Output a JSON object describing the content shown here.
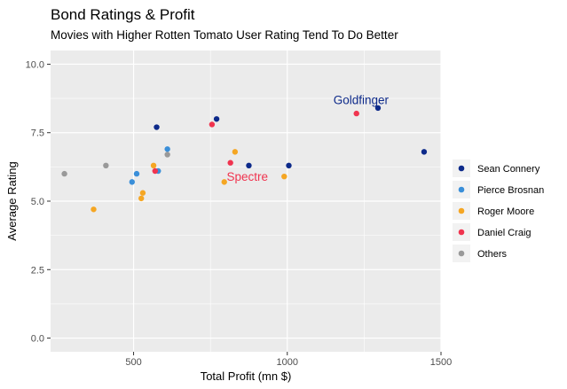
{
  "chart_data": {
    "type": "scatter",
    "title": "Bond Ratings & Profit",
    "subtitle": "Movies with Higher Rotten Tomato User Rating Tend To Do Better",
    "xlabel": "Total Profit (mn $)",
    "ylabel": "Average Rating",
    "xlim": [
      230,
      1500
    ],
    "ylim": [
      -0.5,
      10.5
    ],
    "x_ticks": [
      500,
      1000,
      1500
    ],
    "y_ticks": [
      0,
      2.5,
      5,
      7.5,
      10
    ],
    "y_tick_labels": [
      "0.0",
      "2.5",
      "5.0",
      "7.5",
      "10.0"
    ],
    "grid": true,
    "legend_position": "right",
    "series": [
      {
        "name": "Sean Connery",
        "color": "#0d2a8a",
        "points": [
          [
            575,
            7.7
          ],
          [
            770,
            8.0
          ],
          [
            875,
            6.3
          ],
          [
            1005,
            6.3
          ],
          [
            1295,
            8.4
          ],
          [
            1445,
            6.8
          ]
        ]
      },
      {
        "name": "Pierce Brosnan",
        "color": "#3a8fd9",
        "points": [
          [
            495,
            5.7
          ],
          [
            510,
            6.0
          ],
          [
            580,
            6.1
          ],
          [
            610,
            6.9
          ]
        ]
      },
      {
        "name": "Roger Moore",
        "color": "#f5a623",
        "points": [
          [
            370,
            4.7
          ],
          [
            525,
            5.1
          ],
          [
            530,
            5.3
          ],
          [
            565,
            6.3
          ],
          [
            795,
            5.7
          ],
          [
            830,
            6.8
          ],
          [
            990,
            5.9
          ]
        ]
      },
      {
        "name": "Daniel Craig",
        "color": "#f0344f",
        "points": [
          [
            570,
            6.1
          ],
          [
            755,
            7.8
          ],
          [
            815,
            6.4
          ],
          [
            1225,
            8.2
          ]
        ]
      },
      {
        "name": "Others",
        "color": "#999999",
        "points": [
          [
            275,
            6.0
          ],
          [
            410,
            6.3
          ],
          [
            610,
            6.7
          ]
        ]
      }
    ],
    "annotations": [
      {
        "text": "Goldfinger",
        "x": 1240,
        "y": 8.7,
        "color": "#0d2a8a"
      },
      {
        "text": "Spectre",
        "x": 870,
        "y": 5.9,
        "color": "#f0344f"
      }
    ]
  }
}
